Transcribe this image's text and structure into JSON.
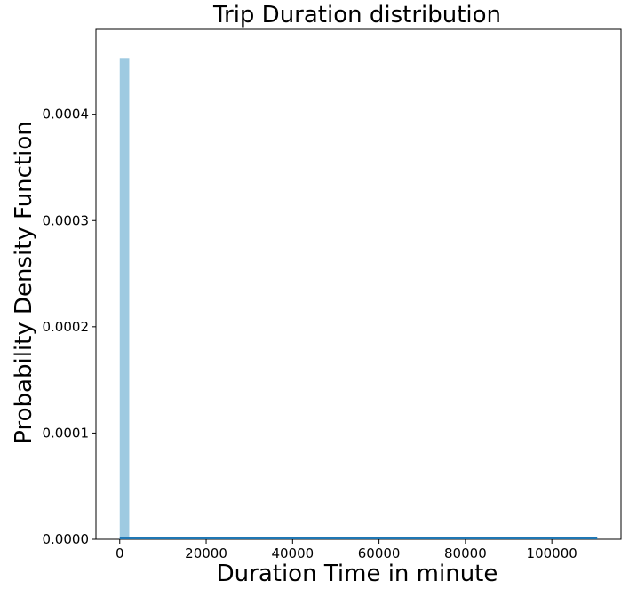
{
  "chart_data": {
    "type": "bar",
    "title": "Trip Duration distribution",
    "xlabel": "Duration Time in minute",
    "ylabel": "Probability Density Function",
    "xlim": [
      -5500,
      116000
    ],
    "ylim": [
      0,
      0.00048
    ],
    "xticks": [
      0,
      20000,
      40000,
      60000,
      80000,
      100000
    ],
    "xtick_labels": [
      "0",
      "20000",
      "40000",
      "60000",
      "80000",
      "100000"
    ],
    "yticks": [
      0,
      0.0001,
      0.0002,
      0.0003,
      0.0004
    ],
    "ytick_labels": [
      "0.0000",
      "0.0001",
      "0.0002",
      "0.0003",
      "0.0004"
    ],
    "bins": [
      {
        "x0": 0,
        "x1": 2200,
        "density": 0.000453
      }
    ],
    "kde_line": {
      "x_start": 0,
      "x_end": 110500,
      "y": 0.0
    },
    "grid": false,
    "colors": {
      "bar": "#9ecae1",
      "line": "#1f77b4"
    }
  }
}
